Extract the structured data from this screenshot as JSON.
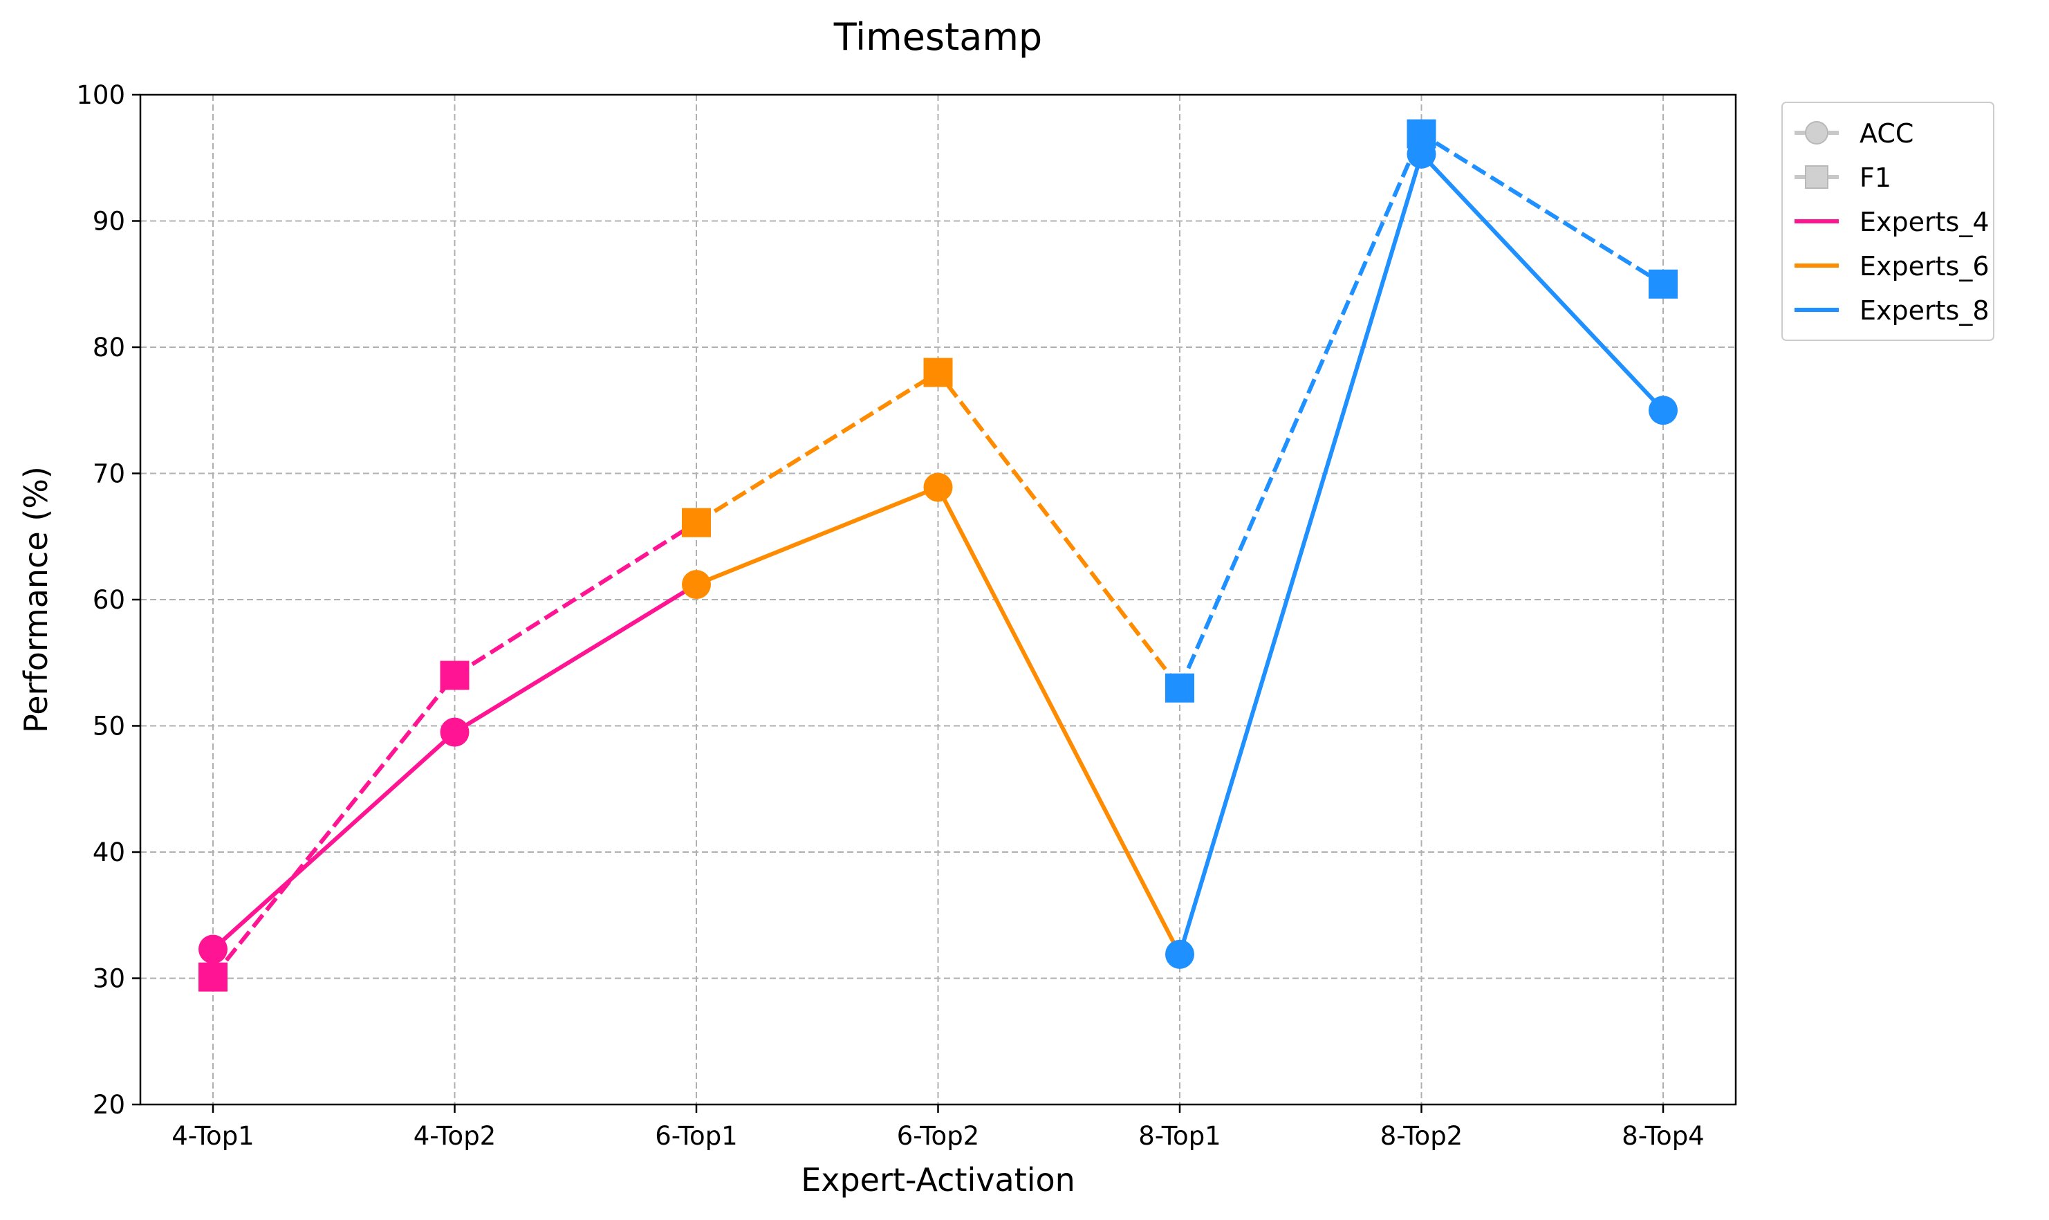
{
  "chart_data": {
    "type": "line",
    "title": "Timestamp",
    "xlabel": "Expert-Activation",
    "ylabel": "Performance (%)",
    "categories": [
      "4-Top1",
      "4-Top2",
      "6-Top1",
      "6-Top2",
      "8-Top1",
      "8-Top2",
      "8-Top4"
    ],
    "ylim": [
      20,
      100
    ],
    "yticks": [
      "20",
      "30",
      "40",
      "50",
      "60",
      "70",
      "80",
      "90",
      "100"
    ],
    "grid": true,
    "legend_position": "outside top-right",
    "metrics": [
      {
        "name": "ACC",
        "marker": "circle",
        "line_style": "solid"
      },
      {
        "name": "F1",
        "marker": "square",
        "line_style": "dashed"
      }
    ],
    "groups": [
      {
        "name": "Experts_4",
        "color": "#ff1493"
      },
      {
        "name": "Experts_6",
        "color": "#ff8c00"
      },
      {
        "name": "Experts_8",
        "color": "#1e90ff"
      }
    ],
    "series": [
      {
        "group": "Experts_4",
        "metric": "ACC",
        "x": [
          "4-Top1",
          "4-Top2",
          "6-Top1"
        ],
        "values": [
          32.3,
          49.5,
          61.2
        ]
      },
      {
        "group": "Experts_4",
        "metric": "F1",
        "x": [
          "4-Top1",
          "4-Top2",
          "6-Top1"
        ],
        "values": [
          30.1,
          54.0,
          66.1
        ]
      },
      {
        "group": "Experts_6",
        "metric": "ACC",
        "x": [
          "6-Top1",
          "6-Top2",
          "8-Top1"
        ],
        "values": [
          61.2,
          68.9,
          31.9
        ]
      },
      {
        "group": "Experts_6",
        "metric": "F1",
        "x": [
          "6-Top1",
          "6-Top2",
          "8-Top1"
        ],
        "values": [
          66.1,
          78.0,
          53.0
        ]
      },
      {
        "group": "Experts_8",
        "metric": "ACC",
        "x": [
          "8-Top1",
          "8-Top2",
          "8-Top4"
        ],
        "values": [
          31.9,
          95.3,
          75.0
        ]
      },
      {
        "group": "Experts_8",
        "metric": "F1",
        "x": [
          "8-Top1",
          "8-Top2",
          "8-Top4"
        ],
        "values": [
          53.0,
          96.9,
          85.0
        ]
      }
    ],
    "points": [
      {
        "category": "4-Top1",
        "metric": "ACC",
        "value": 32.3,
        "color": "#ff1493"
      },
      {
        "category": "4-Top1",
        "metric": "F1",
        "value": 30.1,
        "color": "#ff1493"
      },
      {
        "category": "4-Top2",
        "metric": "ACC",
        "value": 49.5,
        "color": "#ff1493"
      },
      {
        "category": "4-Top2",
        "metric": "F1",
        "value": 54.0,
        "color": "#ff1493"
      },
      {
        "category": "6-Top1",
        "metric": "ACC",
        "value": 61.2,
        "color": "#ff8c00"
      },
      {
        "category": "6-Top1",
        "metric": "F1",
        "value": 66.1,
        "color": "#ff8c00"
      },
      {
        "category": "6-Top2",
        "metric": "ACC",
        "value": 68.9,
        "color": "#ff8c00"
      },
      {
        "category": "6-Top2",
        "metric": "F1",
        "value": 78.0,
        "color": "#ff8c00"
      },
      {
        "category": "8-Top1",
        "metric": "ACC",
        "value": 31.9,
        "color": "#1e90ff"
      },
      {
        "category": "8-Top1",
        "metric": "F1",
        "value": 53.0,
        "color": "#1e90ff"
      },
      {
        "category": "8-Top2",
        "metric": "ACC",
        "value": 95.3,
        "color": "#1e90ff"
      },
      {
        "category": "8-Top2",
        "metric": "F1",
        "value": 96.9,
        "color": "#1e90ff"
      },
      {
        "category": "8-Top4",
        "metric": "ACC",
        "value": 75.0,
        "color": "#1e90ff"
      },
      {
        "category": "8-Top4",
        "metric": "F1",
        "value": 85.0,
        "color": "#1e90ff"
      }
    ],
    "legend": [
      {
        "label": "ACC",
        "kind": "metric",
        "marker": "circle",
        "color": "#c8c8c8"
      },
      {
        "label": "F1",
        "kind": "metric",
        "marker": "square",
        "color": "#c8c8c8"
      },
      {
        "label": "Experts_4",
        "kind": "group",
        "color": "#ff1493"
      },
      {
        "label": "Experts_6",
        "kind": "group",
        "color": "#ff8c00"
      },
      {
        "label": "Experts_8",
        "kind": "group",
        "color": "#1e90ff"
      }
    ]
  }
}
